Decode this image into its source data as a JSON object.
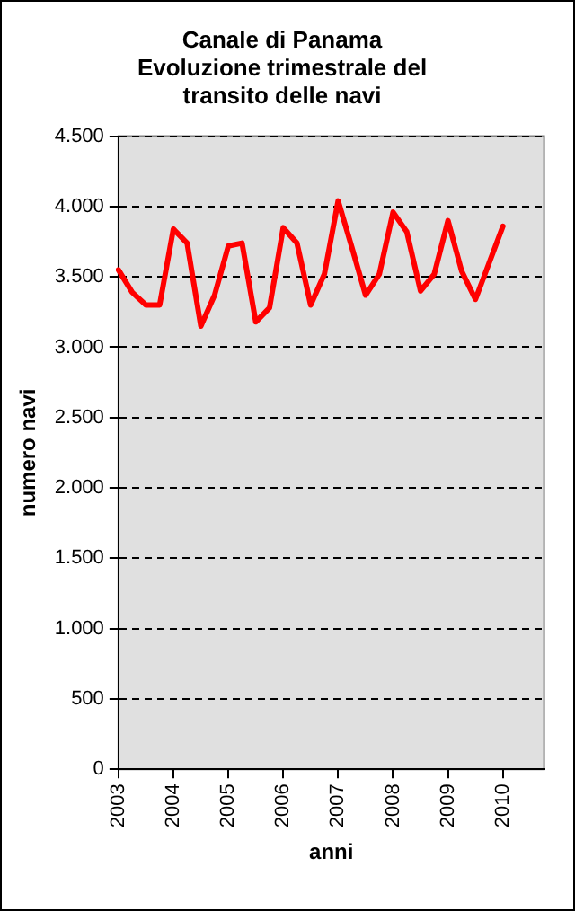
{
  "chart_data": {
    "type": "line",
    "title": "Canale di Panama\nEvoluzione trimestrale del\ntransito delle navi",
    "xlabel": "anni",
    "ylabel": "numero navi",
    "categories": [
      "2003",
      null,
      null,
      null,
      "2004",
      null,
      null,
      null,
      "2005",
      null,
      null,
      null,
      "2006",
      null,
      null,
      null,
      "2007",
      null,
      null,
      null,
      "2008",
      null,
      null,
      null,
      "2009",
      null,
      null,
      null,
      "2010",
      null,
      null,
      null
    ],
    "series": [
      {
        "color": "#ff0000",
        "values": [
          3550,
          3390,
          3300,
          3300,
          3840,
          3740,
          3150,
          3370,
          3720,
          3740,
          3180,
          3280,
          3850,
          3740,
          3300,
          3520,
          4040,
          3710,
          3370,
          3520,
          3960,
          3820,
          3400,
          3520,
          3900,
          3540,
          3340,
          3600,
          3860,
          null,
          null,
          null
        ]
      }
    ],
    "ylim": [
      0,
      4500
    ],
    "yticks": [
      0,
      500,
      {
        "value": 1000,
        "label": "1.000"
      },
      {
        "value": 1500,
        "label": "1.500"
      },
      {
        "value": 2000,
        "label": "2.000"
      },
      {
        "value": 2500,
        "label": "2.500"
      },
      {
        "value": 3000,
        "label": "3.000"
      },
      {
        "value": 3500,
        "label": "3.500"
      },
      {
        "value": 4000,
        "label": "4.000"
      },
      {
        "value": 4500,
        "label": "4.500"
      }
    ],
    "grid": "y",
    "legend": false,
    "marker": "none",
    "line_style": "solid"
  }
}
